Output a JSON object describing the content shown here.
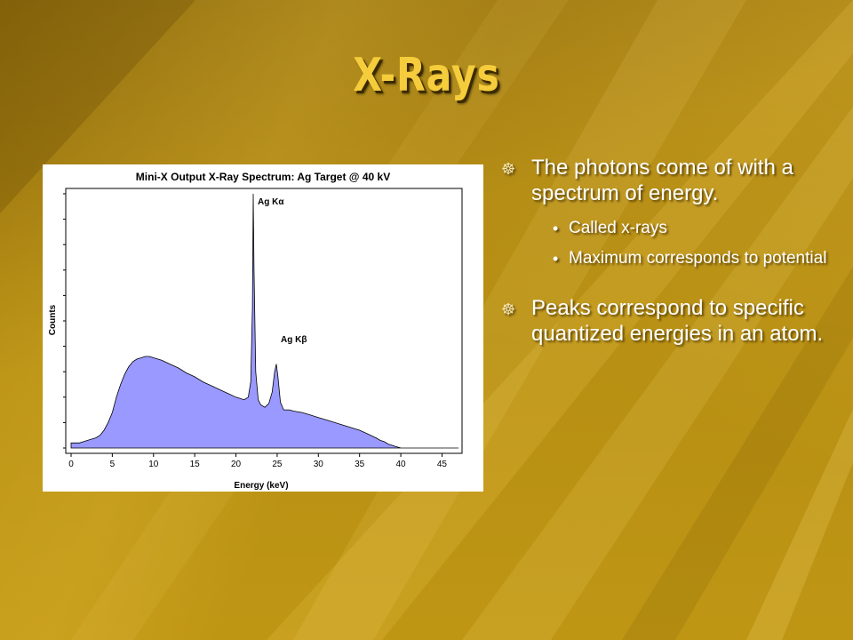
{
  "slide": {
    "title": "X-Rays",
    "colors": {
      "title": "#f5cc3c",
      "text": "#ffffff",
      "background": "#b58d12"
    }
  },
  "bullets": [
    {
      "text": "The photons come of with a spectrum of energy.",
      "icon": "ship-wheel-icon",
      "sub": [
        "Called x-rays",
        "Maximum corresponds to potential"
      ]
    },
    {
      "text": "Peaks correspond to specific quantized energies in an atom.",
      "icon": "ship-wheel-icon",
      "sub": []
    }
  ],
  "chart_data": {
    "type": "area",
    "title": "Mini-X Output X-Ray Spectrum: Ag Target @ 40 kV",
    "xlabel": "Energy (keV)",
    "ylabel": "Counts",
    "xlim": [
      0,
      47
    ],
    "ylim": [
      0,
      100
    ],
    "xticks": [
      "0",
      "5",
      "10",
      "15",
      "20",
      "25",
      "30",
      "35",
      "40",
      "45"
    ],
    "yticks_labeled": false,
    "grid": false,
    "fill_color": "#9999ff",
    "annotations": [
      {
        "text": "Ag Kα",
        "x": 22.1,
        "y": 100
      },
      {
        "text": "Ag Kβ",
        "x": 24.9,
        "y": 36
      }
    ],
    "x": [
      0,
      0.5,
      1,
      1.5,
      2,
      2.5,
      3,
      3.5,
      4,
      4.5,
      5,
      5.5,
      6,
      6.5,
      7,
      7.5,
      8,
      8.5,
      9,
      9.5,
      10,
      11,
      12,
      13,
      14,
      15,
      16,
      17,
      18,
      19,
      20,
      20.5,
      21,
      21.5,
      21.8,
      22.0,
      22.1,
      22.2,
      22.4,
      22.7,
      23,
      23.5,
      24,
      24.4,
      24.7,
      24.9,
      25.1,
      25.4,
      25.8,
      26.5,
      27,
      28,
      29,
      30,
      31,
      32,
      33,
      34,
      35,
      36,
      37,
      37.5,
      38,
      38.5,
      39,
      39.5,
      40,
      47
    ],
    "y": [
      2,
      2,
      2,
      2.5,
      3,
      3.5,
      4,
      5,
      7,
      10,
      14,
      20,
      25,
      29,
      32,
      34,
      35,
      35.5,
      36,
      36,
      35.5,
      34.5,
      33,
      31.5,
      29.5,
      28,
      26,
      24.5,
      23,
      21.5,
      20,
      19.5,
      19,
      20,
      26,
      55,
      100,
      70,
      30,
      19,
      17,
      16,
      17.5,
      22,
      30,
      33,
      28,
      18,
      15,
      15,
      14.5,
      14,
      13,
      12,
      11,
      10,
      9,
      8,
      7,
      5.5,
      4,
      3,
      2.5,
      1.5,
      1,
      0.5,
      0,
      0
    ]
  }
}
